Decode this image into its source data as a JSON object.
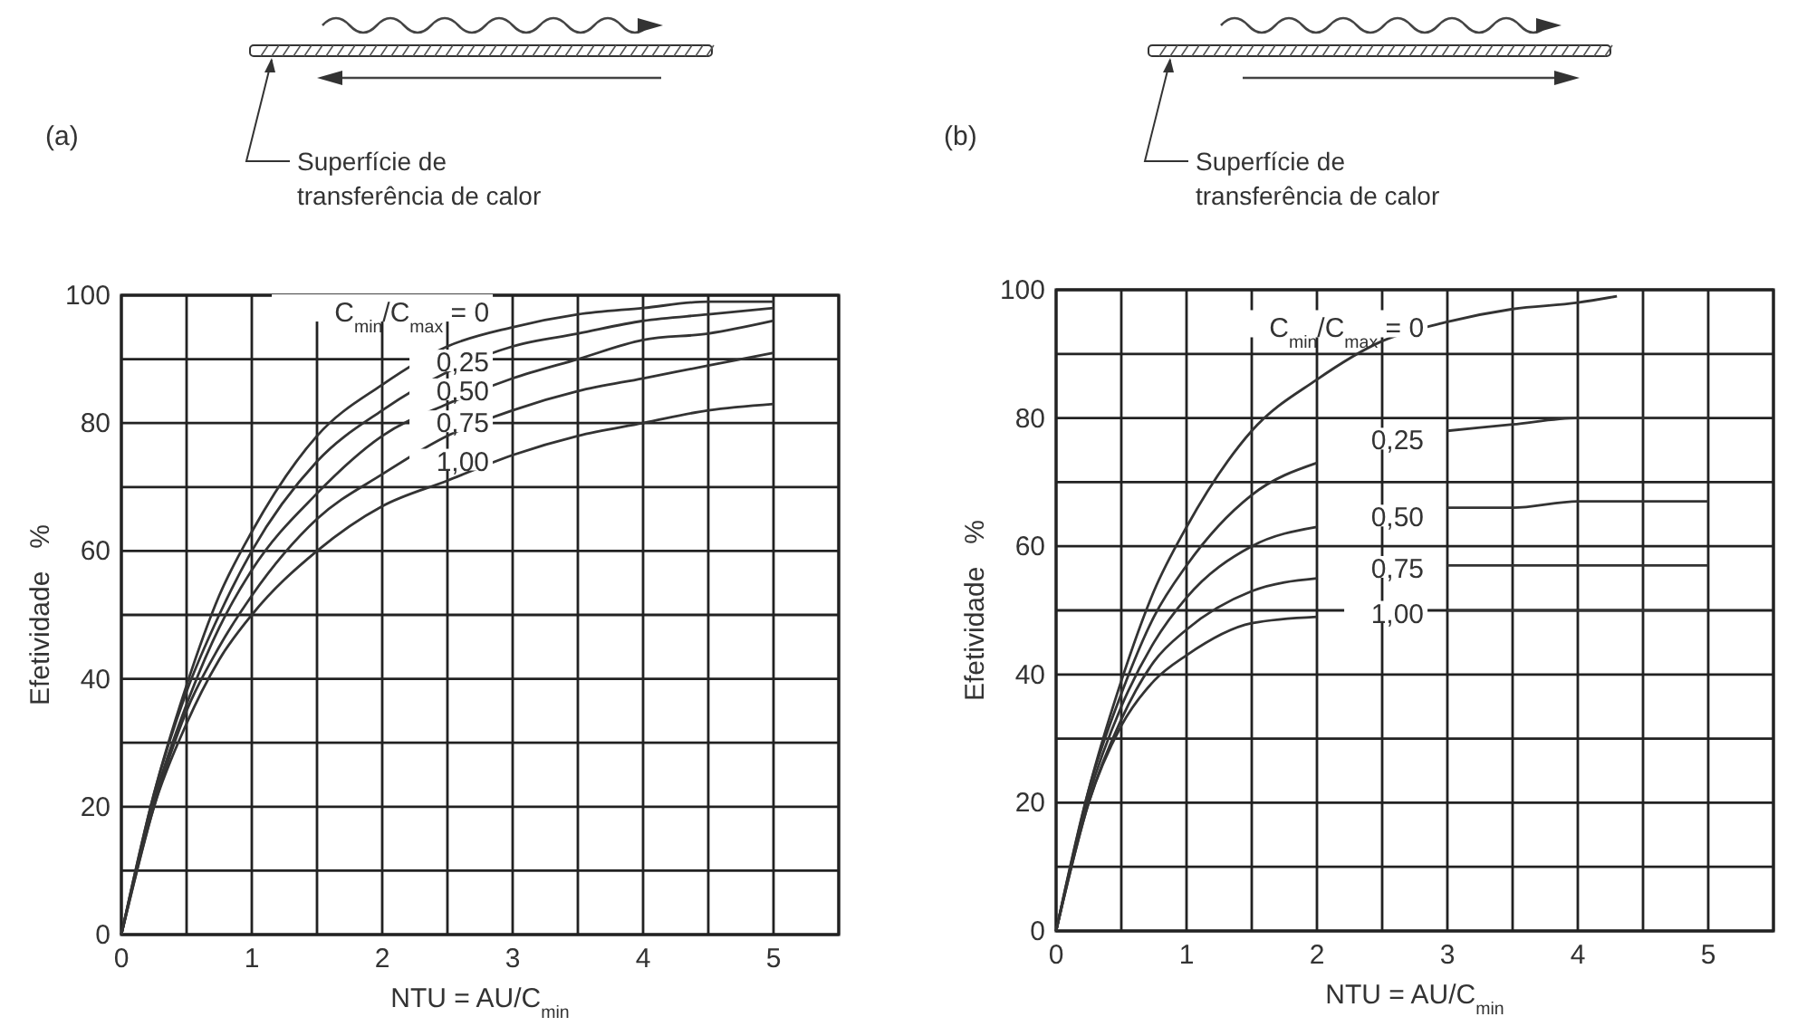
{
  "chart_data": [
    {
      "type": "line",
      "title": "(a)",
      "xlabel": "NTU = AU/C$_{min}$",
      "ylabel": "Efetividade   %",
      "annotations": [
        "Superfície de\ntransferência de calor"
      ],
      "xlim": [
        0,
        5.5
      ],
      "xticks": [
        0,
        {
          "value": 0.5,
          "label": null
        },
        1,
        {
          "value": 1.5,
          "label": null
        },
        2,
        {
          "value": 2.5,
          "label": null
        },
        3,
        {
          "value": 3.5,
          "label": null
        },
        4,
        {
          "value": 4.5,
          "label": null
        },
        5,
        {
          "value": 5.5,
          "label": null
        }
      ],
      "ylim": [
        0,
        100
      ],
      "yticks": [
        0,
        {
          "value": 10,
          "label": null
        },
        20,
        {
          "value": 30,
          "label": null
        },
        40,
        {
          "value": 50,
          "label": null
        },
        60,
        {
          "value": 70,
          "label": null
        },
        80,
        {
          "value": 90,
          "label": null
        },
        100
      ],
      "grid": true,
      "x": [
        0,
        0.25,
        0.5,
        0.75,
        1,
        1.5,
        2,
        2.5,
        3,
        3.5,
        4,
        4.5,
        5
      ],
      "series": [
        {
          "name": "C$_{min}$/C$_{max}$ = 0",
          "color": "#333333",
          "values": [
            0,
            22,
            39,
            53,
            63,
            78,
            86,
            92,
            95,
            97,
            98,
            99,
            99
          ]
        },
        {
          "name": "0,25",
          "color": "#333333",
          "values": [
            0,
            22,
            38,
            50,
            60,
            74,
            82,
            88,
            92,
            94,
            96,
            97,
            98
          ]
        },
        {
          "name": "0,50",
          "color": "#333333",
          "values": [
            0,
            21,
            36,
            48,
            57,
            69,
            78,
            83,
            87,
            90,
            93,
            94,
            96
          ]
        },
        {
          "name": "0,75",
          "color": "#333333",
          "values": [
            0,
            20,
            35,
            45,
            53,
            65,
            72,
            78,
            82,
            85,
            87,
            89,
            91
          ]
        },
        {
          "name": "1,00",
          "color": "#333333",
          "values": [
            0,
            20,
            33,
            43,
            50,
            60,
            67,
            71,
            75,
            78,
            80,
            82,
            83
          ]
        }
      ]
    },
    {
      "type": "line",
      "title": "(b)",
      "xlabel": "NTU = AU/C$_{min}$",
      "ylabel": "Efetividade   %",
      "annotations": [
        "Superfície de\ntransferência de calor"
      ],
      "xlim": [
        0,
        5.5
      ],
      "xticks": [
        0,
        {
          "value": 0.5,
          "label": null
        },
        1,
        {
          "value": 1.5,
          "label": null
        },
        2,
        {
          "value": 2.5,
          "label": null
        },
        3,
        {
          "value": 3.5,
          "label": null
        },
        4,
        {
          "value": 4.5,
          "label": null
        },
        5,
        {
          "value": 5.5,
          "label": null
        }
      ],
      "ylim": [
        0,
        100
      ],
      "yticks": [
        0,
        {
          "value": 10,
          "label": null
        },
        20,
        {
          "value": 30,
          "label": null
        },
        40,
        {
          "value": 50,
          "label": null
        },
        60,
        {
          "value": 70,
          "label": null
        },
        80,
        {
          "value": 90,
          "label": null
        },
        100
      ],
      "grid": true,
      "x": [
        0,
        0.25,
        0.5,
        0.75,
        1,
        1.5,
        2,
        2.5,
        3,
        3.5,
        4,
        4.5,
        5
      ],
      "series": [
        {
          "name": "C$_{min}$/C$_{max}$ = 0",
          "color": "#333333",
          "x": [
            0,
            0.25,
            0.5,
            0.75,
            1,
            1.5,
            2,
            2.5,
            3,
            3.5,
            4,
            4.3
          ],
          "values": [
            0,
            22,
            39,
            53,
            63,
            78,
            86,
            92,
            95,
            97,
            98,
            99
          ]
        },
        {
          "name": "0,25",
          "color": "#333333",
          "values": [
            0,
            22,
            37,
            49,
            57,
            68,
            73,
            null,
            78,
            79,
            80,
            80,
            80
          ]
        },
        {
          "name": "0,50",
          "color": "#333333",
          "values": [
            0,
            21,
            35,
            45,
            52,
            60,
            63,
            null,
            66,
            66,
            67,
            67,
            67
          ]
        },
        {
          "name": "0,75",
          "color": "#333333",
          "values": [
            0,
            20,
            33,
            42,
            47,
            53,
            55,
            null,
            57,
            57,
            57,
            57,
            57
          ]
        },
        {
          "name": "1,00",
          "color": "#333333",
          "values": [
            0,
            20,
            32,
            39,
            43,
            48,
            49,
            null,
            50,
            50,
            50,
            50,
            50
          ]
        }
      ]
    }
  ]
}
